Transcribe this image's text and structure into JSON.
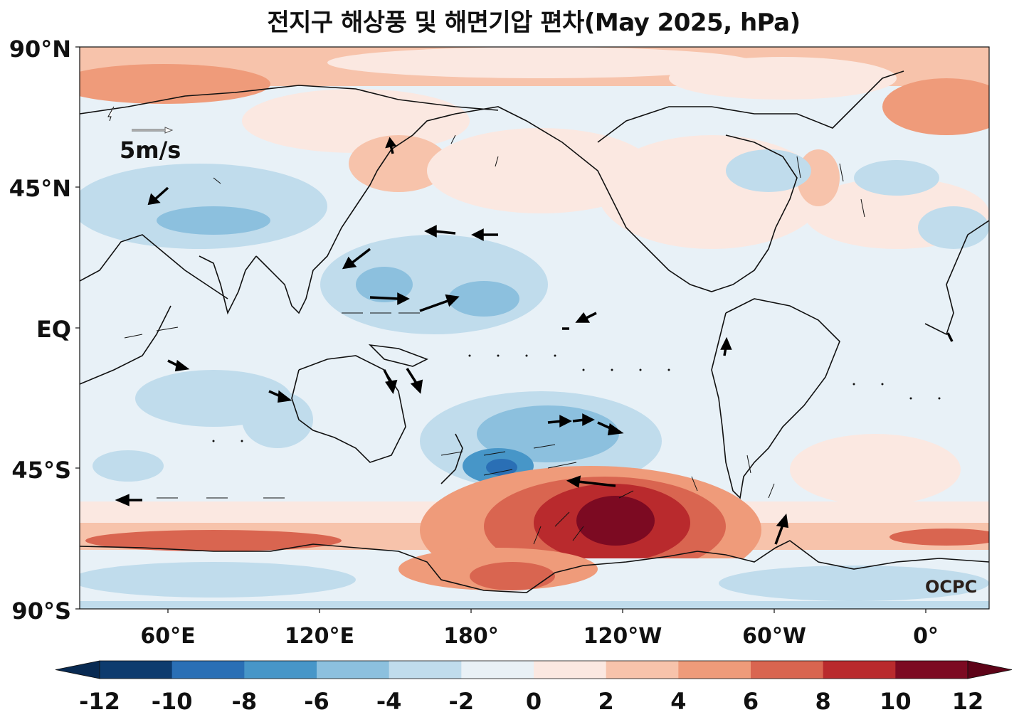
{
  "title": "전지구 해상풍 및 해면기압 편차(May 2025, hPa)",
  "latitude_labels": [
    "90°N",
    "45°N",
    "EQ",
    "45°S",
    "90°S"
  ],
  "longitude_labels": [
    "60°E",
    "120°E",
    "180°",
    "120°W",
    "60°W",
    "0°"
  ],
  "scale_vector_label": "5m/s",
  "logo": "OCPC",
  "colorbar": {
    "ticks": [
      "-12",
      "-10",
      "-8",
      "-6",
      "-4",
      "-2",
      "0",
      "2",
      "4",
      "6",
      "8",
      "10",
      "12"
    ],
    "colors": [
      "#0d3b6e",
      "#2a6fb5",
      "#4796c8",
      "#8cc0de",
      "#c0dcec",
      "#e9f1f6",
      "#fbe8e1",
      "#f7c3ab",
      "#ef9b7a",
      "#d96550",
      "#b92a2d",
      "#7c0a22"
    ],
    "under_color": "#082a52",
    "over_color": "#5e0318"
  },
  "map_colors": {
    "background": "#e8f1f7",
    "coastline": "#111111"
  }
}
